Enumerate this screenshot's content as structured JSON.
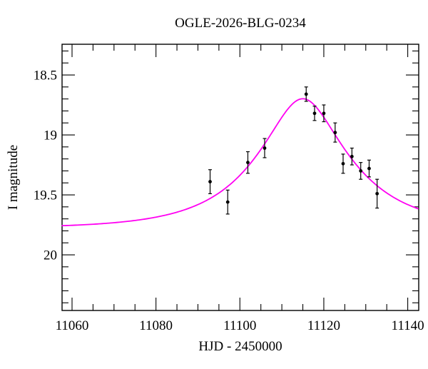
{
  "colors": {
    "background": "#ffffff",
    "frame": "#000000",
    "model_curve": "#ff00f2",
    "data_points": "#000000"
  },
  "chart_data": {
    "type": "scatter",
    "title": "OGLE-2026-BLG-0234",
    "xlabel": "HJD - 2450000",
    "ylabel": "I magnitude",
    "x_range": [
      11057.62,
      11142.62
    ],
    "y_range": [
      18.244,
      20.464
    ],
    "y_axis_inverted": true,
    "grid": false,
    "legend": "none",
    "x_major_ticks": [
      11060,
      11080,
      11100,
      11120,
      11140
    ],
    "x_major_tick_labels": [
      "11060",
      "11080",
      "11100",
      "11120",
      "11140"
    ],
    "x_minor_step": 5,
    "y_major_ticks": [
      18.5,
      19.0,
      19.5,
      20.0
    ],
    "y_major_tick_labels": [
      "18.5",
      "19",
      "19.5",
      "20"
    ],
    "y_minor_step": 0.1,
    "series": [
      {
        "name": "I-band photometry data points",
        "type": "scatter_errorbar",
        "color": "#000000",
        "points": [
          {
            "t": 11092.9,
            "mag": 19.39,
            "err": 0.1
          },
          {
            "t": 11097.1,
            "mag": 19.56,
            "err": 0.1
          },
          {
            "t": 11101.9,
            "mag": 19.23,
            "err": 0.09
          },
          {
            "t": 11105.9,
            "mag": 19.11,
            "err": 0.08
          },
          {
            "t": 11115.8,
            "mag": 18.66,
            "err": 0.06
          },
          {
            "t": 11117.8,
            "mag": 18.82,
            "err": 0.06
          },
          {
            "t": 11120.0,
            "mag": 18.82,
            "err": 0.07
          },
          {
            "t": 11122.7,
            "mag": 18.98,
            "err": 0.08
          },
          {
            "t": 11124.6,
            "mag": 19.24,
            "err": 0.08
          },
          {
            "t": 11126.7,
            "mag": 19.18,
            "err": 0.07
          },
          {
            "t": 11128.8,
            "mag": 19.3,
            "err": 0.07
          },
          {
            "t": 11130.8,
            "mag": 19.28,
            "err": 0.07
          },
          {
            "t": 11132.7,
            "mag": 19.49,
            "err": 0.12
          }
        ]
      },
      {
        "name": "microlensing model fit curve",
        "type": "line",
        "color": "#ff00f2",
        "model": {
          "form": "paczynski",
          "t0": 11115.0,
          "tE": 20.7,
          "u0": 0.39,
          "baseline_mag": 19.78,
          "peak_mag": 18.7
        }
      }
    ]
  }
}
